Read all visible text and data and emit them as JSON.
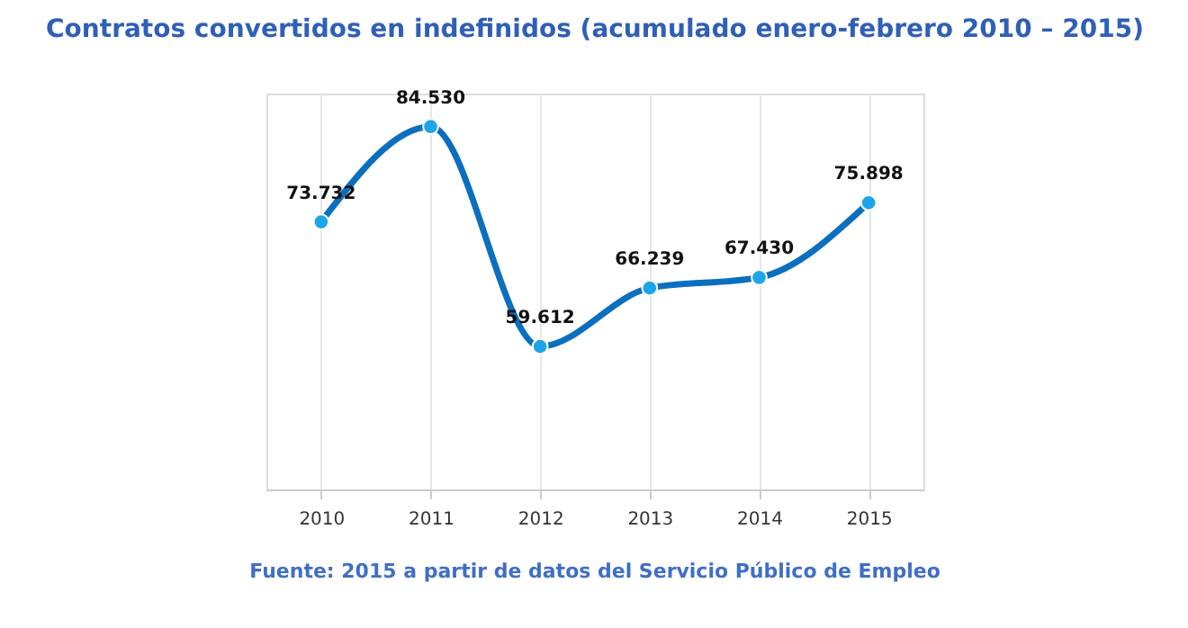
{
  "chart_data": {
    "type": "line",
    "title": "Contratos convertidos en indefinidos (acumulado enero-febrero 2010 – 2015)",
    "categories": [
      "2010",
      "2011",
      "2012",
      "2013",
      "2014",
      "2015"
    ],
    "series": [
      {
        "color": "#0b6fc0",
        "values": [
          73732,
          84530,
          59612,
          66239,
          67430,
          75898
        ],
        "value_labels": [
          "73.732",
          "84.530",
          "59.612",
          "66.239",
          "67.430",
          "75.898"
        ]
      }
    ],
    "marker": "circle",
    "line_style": "solid",
    "grid": "x",
    "annotations": [
      "Fuente: 2015 a partir de datos del Servicio Público de Empleo"
    ]
  }
}
